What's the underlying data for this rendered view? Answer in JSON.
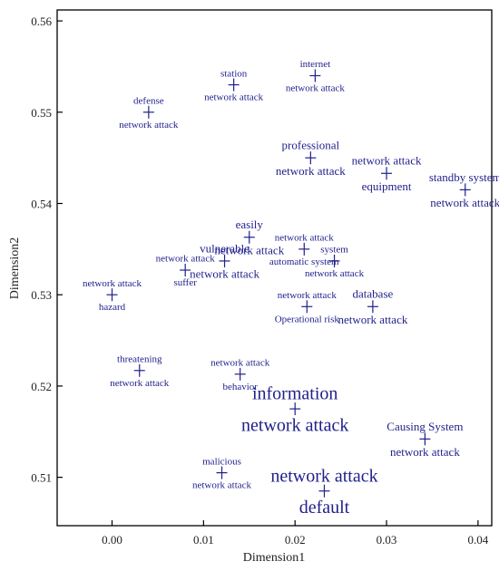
{
  "chart_data": {
    "type": "scatter",
    "xlabel": "Dimension1",
    "ylabel": "Dimension2",
    "xlim": [
      -0.006,
      0.0415
    ],
    "ylim": [
      0.5047,
      0.5612
    ],
    "x_ticks": [
      0.0,
      0.01,
      0.02,
      0.03,
      0.04
    ],
    "x_tick_labels": [
      "0.00",
      "0.01",
      "0.02",
      "0.03",
      "0.04"
    ],
    "y_ticks": [
      0.51,
      0.52,
      0.53,
      0.54,
      0.55,
      0.56
    ],
    "y_tick_labels": [
      "0.51",
      "0.52",
      "0.53",
      "0.54",
      "0.55",
      "0.56"
    ],
    "grid": false,
    "marker_color": "#1f1f8c",
    "points": [
      {
        "x": 0.0133,
        "y": 0.553,
        "labels": [
          {
            "text": "station",
            "pos": "above",
            "size": 11
          },
          {
            "text": "network attack",
            "pos": "below",
            "size": 11
          }
        ]
      },
      {
        "x": 0.0222,
        "y": 0.554,
        "labels": [
          {
            "text": "internet",
            "pos": "above",
            "size": 11
          },
          {
            "text": "network attack",
            "pos": "below",
            "size": 11
          }
        ]
      },
      {
        "x": 0.004,
        "y": 0.55,
        "labels": [
          {
            "text": "defense",
            "pos": "above",
            "size": 11
          },
          {
            "text": "network attack",
            "pos": "below",
            "size": 11
          }
        ]
      },
      {
        "x": 0.0217,
        "y": 0.545,
        "labels": [
          {
            "text": "professional",
            "pos": "above",
            "size": 13
          },
          {
            "text": "network attack",
            "pos": "below",
            "size": 13
          }
        ]
      },
      {
        "x": 0.03,
        "y": 0.5433,
        "labels": [
          {
            "text": "network attack",
            "pos": "above",
            "size": 13
          },
          {
            "text": "equipment",
            "pos": "below",
            "size": 13
          }
        ]
      },
      {
        "x": 0.0386,
        "y": 0.5415,
        "labels": [
          {
            "text": "standby system",
            "pos": "above",
            "size": 13
          },
          {
            "text": "network attack",
            "pos": "below",
            "size": 13
          }
        ]
      },
      {
        "x": 0.015,
        "y": 0.5363,
        "labels": [
          {
            "text": "easily",
            "pos": "above",
            "size": 13
          },
          {
            "text": "network attack",
            "pos": "below",
            "size": 13
          }
        ]
      },
      {
        "x": 0.0123,
        "y": 0.5337,
        "labels": [
          {
            "text": "vulnerable",
            "pos": "above",
            "size": 13
          },
          {
            "text": "network attack",
            "pos": "below",
            "size": 13
          }
        ]
      },
      {
        "x": 0.008,
        "y": 0.5327,
        "labels": [
          {
            "text": "network attack",
            "pos": "above",
            "size": 11
          },
          {
            "text": "suffer",
            "pos": "below",
            "size": 11
          }
        ]
      },
      {
        "x": 0.0,
        "y": 0.53,
        "labels": [
          {
            "text": "network attack",
            "pos": "above",
            "size": 11
          },
          {
            "text": "hazard",
            "pos": "below",
            "size": 11
          }
        ]
      },
      {
        "x": 0.021,
        "y": 0.535,
        "labels": [
          {
            "text": "network attack",
            "pos": "above",
            "size": 11
          },
          {
            "text": "automatic system",
            "pos": "below",
            "size": 11
          }
        ]
      },
      {
        "x": 0.0243,
        "y": 0.5337,
        "labels": [
          {
            "text": "system",
            "pos": "above",
            "size": 11
          },
          {
            "text": "network attack",
            "pos": "below",
            "size": 11
          }
        ]
      },
      {
        "x": 0.0213,
        "y": 0.5287,
        "labels": [
          {
            "text": "network attack",
            "pos": "above",
            "size": 11
          },
          {
            "text": "Operational risk",
            "pos": "below",
            "size": 11
          }
        ]
      },
      {
        "x": 0.0285,
        "y": 0.5287,
        "labels": [
          {
            "text": "database",
            "pos": "above",
            "size": 13
          },
          {
            "text": "network attack",
            "pos": "below",
            "size": 13
          }
        ]
      },
      {
        "x": 0.003,
        "y": 0.5217,
        "labels": [
          {
            "text": "threatening",
            "pos": "above",
            "size": 11
          },
          {
            "text": "network attack",
            "pos": "below",
            "size": 11
          }
        ]
      },
      {
        "x": 0.014,
        "y": 0.5213,
        "labels": [
          {
            "text": "network attack",
            "pos": "above",
            "size": 11
          },
          {
            "text": "behavior",
            "pos": "below",
            "size": 11
          }
        ]
      },
      {
        "x": 0.02,
        "y": 0.5175,
        "labels": [
          {
            "text": "information",
            "pos": "above",
            "size": 20
          },
          {
            "text": "network attack",
            "pos": "below",
            "size": 20
          }
        ]
      },
      {
        "x": 0.0342,
        "y": 0.5142,
        "labels": [
          {
            "text": "Causing System",
            "pos": "above",
            "size": 13
          },
          {
            "text": "network attack",
            "pos": "below",
            "size": 13
          }
        ]
      },
      {
        "x": 0.012,
        "y": 0.5105,
        "labels": [
          {
            "text": "malicious",
            "pos": "above",
            "size": 11
          },
          {
            "text": "network attack",
            "pos": "below",
            "size": 11
          }
        ]
      },
      {
        "x": 0.0232,
        "y": 0.5085,
        "labels": [
          {
            "text": "network attack",
            "pos": "above",
            "size": 20
          },
          {
            "text": "default",
            "pos": "below",
            "size": 20
          }
        ]
      }
    ]
  }
}
